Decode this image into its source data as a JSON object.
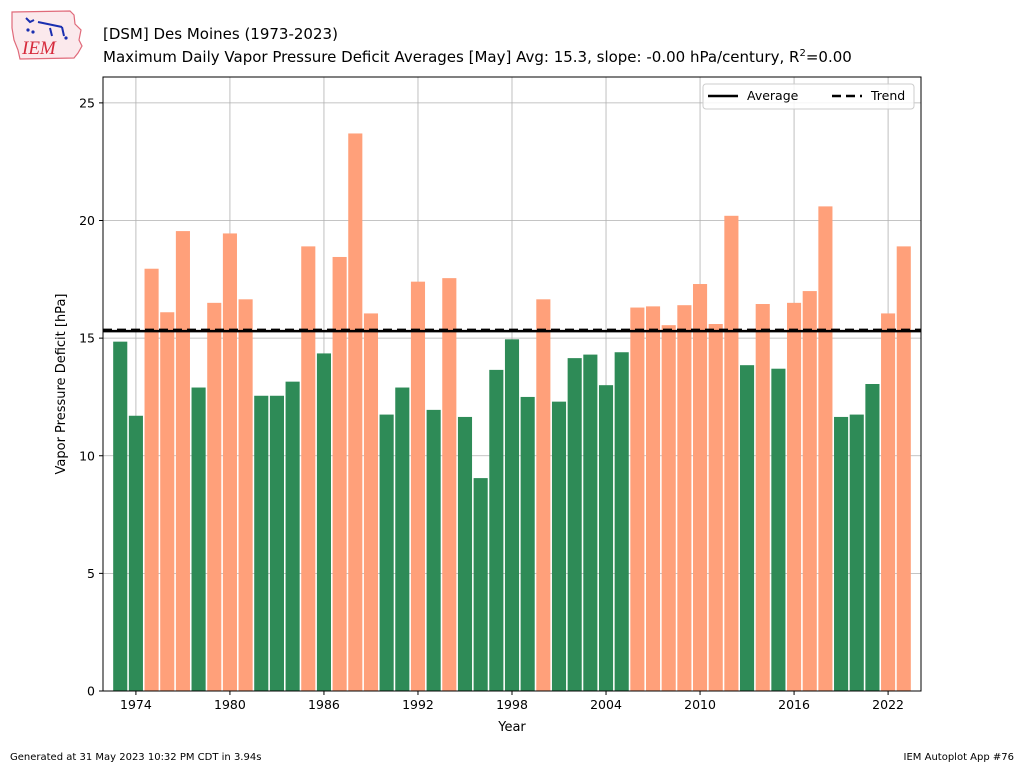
{
  "header": {
    "title": "[DSM] Des Moines (1973-2023)",
    "subtitle_prefix": "Maximum Daily Vapor Pressure Deficit Averages [May]  Avg: 15.3, slope: -0.00 hPa/century, R",
    "subtitle_sup": "2",
    "subtitle_suffix": "=0.00"
  },
  "logo": {
    "text": "IEM"
  },
  "footer": {
    "left": "Generated at 31 May 2023 10:32 PM CDT in 3.94s",
    "right": "IEM Autoplot App #76"
  },
  "colors": {
    "above_average": "#ffa07a",
    "below_average": "#2e8b57",
    "average_line": "#000000",
    "trend_line": "#000000",
    "grid": "#b0b0b0"
  },
  "chart_data": {
    "type": "bar",
    "title": "[DSM] Des Moines (1973-2023)",
    "xlabel": "Year",
    "ylabel": "Vapor Pressure Deficit [hPa]",
    "xlim": [
      1971.9,
      2024.1
    ],
    "ylim": [
      0,
      26.1
    ],
    "xticks": [
      1974,
      1980,
      1986,
      1992,
      1998,
      2004,
      2010,
      2016,
      2022
    ],
    "yticks": [
      0,
      5,
      10,
      15,
      20,
      25
    ],
    "grid": true,
    "legend_position": "top-right",
    "legend": [
      {
        "label": "Average",
        "style": "solid"
      },
      {
        "label": "Trend",
        "style": "dashed"
      }
    ],
    "average": 15.3,
    "trend_start": 15.35,
    "trend_end": 15.35,
    "x": [
      1973,
      1974,
      1975,
      1976,
      1977,
      1978,
      1979,
      1980,
      1981,
      1982,
      1983,
      1984,
      1985,
      1986,
      1987,
      1988,
      1989,
      1990,
      1991,
      1992,
      1993,
      1994,
      1995,
      1996,
      1997,
      1998,
      1999,
      2000,
      2001,
      2002,
      2003,
      2004,
      2005,
      2006,
      2007,
      2008,
      2009,
      2010,
      2011,
      2012,
      2013,
      2014,
      2015,
      2016,
      2017,
      2018,
      2019,
      2020,
      2021,
      2022,
      2023
    ],
    "values": [
      14.85,
      11.7,
      17.95,
      16.1,
      19.55,
      12.9,
      16.5,
      19.45,
      16.65,
      12.55,
      12.55,
      13.15,
      18.9,
      14.35,
      18.45,
      23.7,
      16.05,
      11.75,
      12.9,
      17.4,
      11.95,
      17.55,
      11.65,
      9.05,
      13.65,
      14.95,
      12.5,
      16.65,
      12.3,
      14.15,
      14.3,
      13.0,
      14.4,
      16.3,
      16.35,
      15.55,
      16.4,
      17.3,
      15.6,
      20.2,
      13.85,
      16.45,
      13.7,
      16.5,
      17.0,
      20.6,
      11.65,
      11.75,
      13.05,
      16.05,
      18.9
    ]
  }
}
